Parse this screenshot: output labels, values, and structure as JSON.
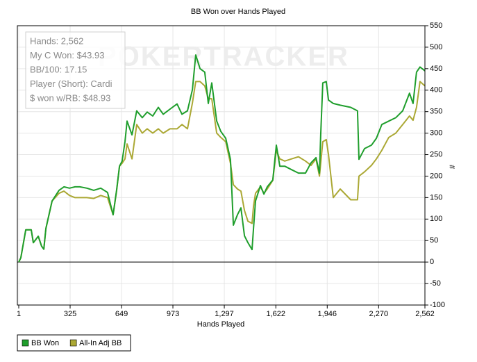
{
  "chart_data": {
    "type": "line",
    "title": "BB Won over Hands Played",
    "xlabel": "Hands Played",
    "ylabel": "#",
    "watermark": "POKERTRACKER",
    "info": [
      "Hands: 2,562",
      "My C Won: $43.93",
      "BB/100: 17.15",
      "Player (Short): Cardi",
      "$ won w/RB: $48.93"
    ],
    "x": [
      1,
      14,
      45,
      80,
      93,
      124,
      145,
      159,
      172,
      211,
      255,
      286,
      321,
      356,
      386,
      430,
      474,
      518,
      561,
      596,
      618,
      636,
      653,
      671,
      684,
      715,
      745,
      780,
      811,
      846,
      881,
      912,
      955,
      999,
      1030,
      1065,
      1096,
      1117,
      1144,
      1174,
      1196,
      1218,
      1249,
      1275,
      1306,
      1336,
      1354,
      1380,
      1402,
      1424,
      1446,
      1472,
      1481,
      1494,
      1525,
      1547,
      1568,
      1603,
      1625,
      1647,
      1678,
      1721,
      1765,
      1809,
      1844,
      1875,
      1897,
      1905,
      1918,
      1940,
      1954,
      1984,
      2028,
      2094,
      2137,
      2146,
      2181,
      2225,
      2256,
      2290,
      2334,
      2378,
      2422,
      2465,
      2487,
      2509,
      2531,
      2562
    ],
    "series": [
      {
        "name": "BB Won",
        "color": "#1f9e2c",
        "values": [
          0,
          10,
          75,
          75,
          45,
          60,
          37,
          30,
          78,
          142,
          167,
          175,
          172,
          175,
          175,
          172,
          167,
          172,
          162,
          110,
          167,
          223,
          235,
          280,
          328,
          296,
          352,
          336,
          349,
          340,
          360,
          344,
          356,
          368,
          344,
          352,
          401,
          482,
          450,
          442,
          369,
          417,
          328,
          304,
          288,
          239,
          86,
          110,
          126,
          61,
          45,
          29,
          78,
          142,
          178,
          158,
          175,
          191,
          272,
          223,
          223,
          215,
          207,
          207,
          231,
          243,
          207,
          296,
          417,
          420,
          377,
          369,
          365,
          360,
          352,
          239,
          264,
          272,
          288,
          320,
          328,
          336,
          352,
          393,
          369,
          442,
          454,
          445
        ]
      },
      {
        "name": "All-In Adj BB",
        "color": "#aba834",
        "values": [
          0,
          10,
          75,
          75,
          45,
          60,
          37,
          30,
          78,
          142,
          160,
          165,
          155,
          150,
          150,
          150,
          148,
          155,
          150,
          110,
          165,
          223,
          230,
          240,
          275,
          240,
          320,
          300,
          310,
          300,
          310,
          300,
          310,
          310,
          320,
          310,
          370,
          420,
          420,
          410,
          380,
          380,
          300,
          290,
          280,
          230,
          180,
          170,
          165,
          120,
          95,
          90,
          130,
          160,
          175,
          160,
          170,
          190,
          260,
          240,
          235,
          240,
          245,
          235,
          225,
          240,
          200,
          230,
          280,
          285,
          250,
          150,
          170,
          145,
          145,
          200,
          210,
          225,
          240,
          260,
          290,
          300,
          320,
          340,
          330,
          360,
          420,
          410
        ]
      }
    ],
    "xlim": [
      1,
      2562
    ],
    "xticks": [
      1,
      325,
      649,
      973,
      {
        "value": 1297,
        "label": "1,297"
      },
      {
        "value": 1622,
        "label": "1,622"
      },
      {
        "value": 1946,
        "label": "1,946"
      },
      {
        "value": 2270,
        "label": "2,270"
      },
      {
        "value": 2562,
        "label": "2,562"
      }
    ],
    "ylim": [
      -100,
      550
    ],
    "yticks": [
      -100,
      -50,
      0,
      50,
      100,
      150,
      200,
      250,
      300,
      350,
      400,
      450,
      500,
      550
    ],
    "grid": true
  }
}
